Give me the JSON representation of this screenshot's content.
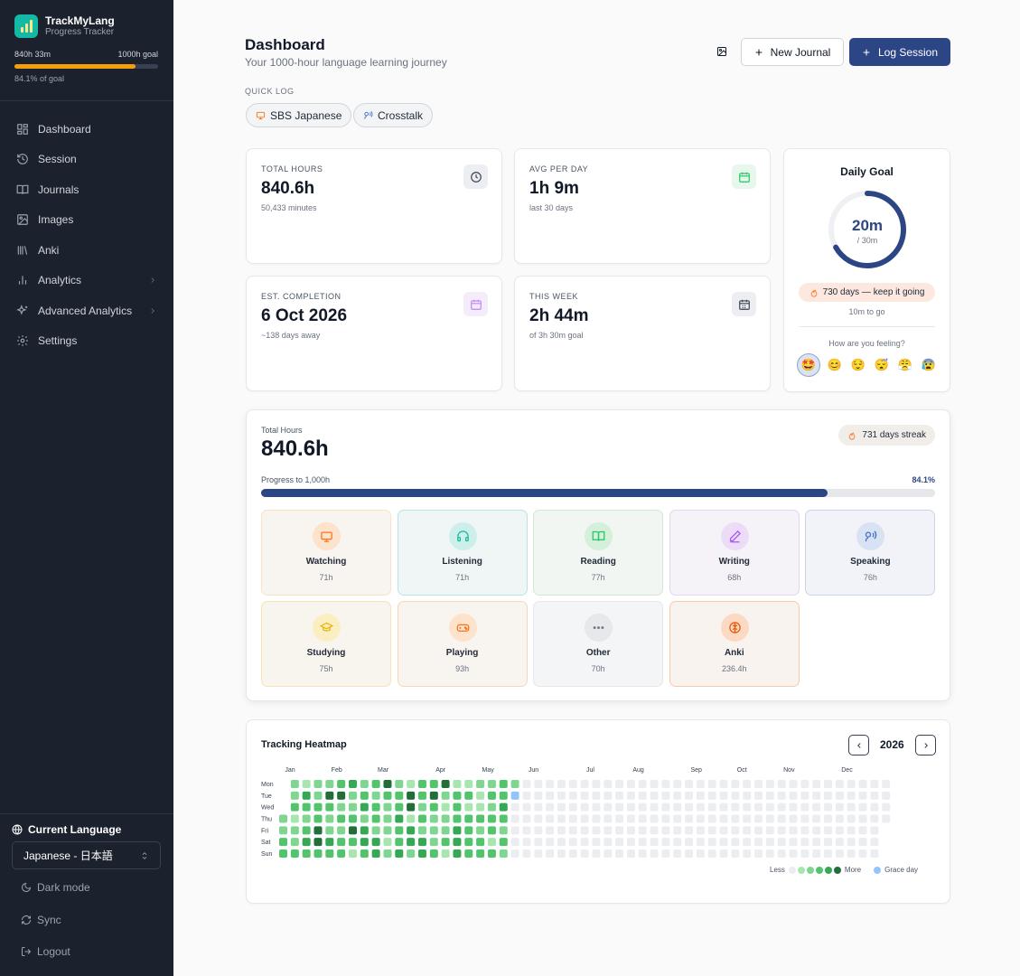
{
  "app": {
    "name": "TrackMyLang",
    "subtitle": "Progress Tracker"
  },
  "goal": {
    "current": "840h 33m",
    "target": "1000h goal",
    "percent_text": "84.1% of goal",
    "fraction": 0.841
  },
  "nav": [
    {
      "label": "Dashboard",
      "icon": "dashboard-icon"
    },
    {
      "label": "Session",
      "icon": "history-icon"
    },
    {
      "label": "Journals",
      "icon": "book-icon"
    },
    {
      "label": "Images",
      "icon": "image-icon"
    },
    {
      "label": "Anki",
      "icon": "library-icon"
    },
    {
      "label": "Analytics",
      "icon": "bar-chart-icon",
      "has_submenu": true
    },
    {
      "label": "Advanced Analytics",
      "icon": "sparkles-icon",
      "has_submenu": true
    },
    {
      "label": "Settings",
      "icon": "gear-icon"
    }
  ],
  "sidebar_bottom": {
    "current_language_label": "Current Language",
    "language_value": "Japanese - 日本語",
    "dark_mode": "Dark mode",
    "sync": "Sync",
    "logout": "Logout"
  },
  "header": {
    "title": "Dashboard",
    "subtitle": "Your 1000-hour language learning journey",
    "new_journal": "New Journal",
    "log_session": "Log Session"
  },
  "quick_log": {
    "label": "QUICK LOG",
    "chips": [
      {
        "label": "SBS Japanese",
        "icon": "tv-icon"
      },
      {
        "label": "Crosstalk",
        "icon": "speaking-icon"
      }
    ]
  },
  "stats": {
    "total_hours": {
      "label": "TOTAL HOURS",
      "value": "840.6h",
      "sub": "50,433 minutes",
      "icon": "clock-icon"
    },
    "avg_per_day": {
      "label": "AVG PER DAY",
      "value": "1h 9m",
      "sub": "last 30 days",
      "icon": "calendar-icon"
    },
    "est_completion": {
      "label": "EST. COMPLETION",
      "value": "6 Oct 2026",
      "sub": "~138 days away",
      "icon": "calendar-icon"
    },
    "this_week": {
      "label": "THIS WEEK",
      "value": "2h 44m",
      "sub": "of 3h 30m goal",
      "icon": "calendar-grid-icon"
    }
  },
  "daily_goal": {
    "title": "Daily Goal",
    "value": "20m",
    "target": "/ 30m",
    "fraction": 0.667,
    "streak": "730 days — keep it going",
    "to_go": "10m to go",
    "feeling_prompt": "How are you feeling?",
    "moods": [
      "🤩",
      "😊",
      "😌",
      "😴",
      "😤",
      "😰"
    ],
    "selected_mood": 0
  },
  "total_panel": {
    "label": "Total Hours",
    "value": "840.6h",
    "streak": "731 days streak",
    "progress_label": "Progress to 1,000h",
    "progress_pct": "84.1%",
    "fraction": 0.841,
    "categories": [
      {
        "name": "Watching",
        "value": "71h",
        "icon": "tv-icon",
        "color": "#f97316"
      },
      {
        "name": "Listening",
        "value": "71h",
        "icon": "headphones-icon",
        "color": "#14b8a6"
      },
      {
        "name": "Reading",
        "value": "77h",
        "icon": "book-open-icon",
        "color": "#22c55e"
      },
      {
        "name": "Writing",
        "value": "68h",
        "icon": "pen-icon",
        "color": "#a855f7"
      },
      {
        "name": "Speaking",
        "value": "76h",
        "icon": "speaking-icon",
        "color": "#3b6fc4"
      },
      {
        "name": "Studying",
        "value": "75h",
        "icon": "graduation-cap-icon",
        "color": "#eab308"
      },
      {
        "name": "Playing",
        "value": "93h",
        "icon": "gamepad-icon",
        "color": "#f97316"
      },
      {
        "name": "Other",
        "value": "70h",
        "icon": "more-horizontal-icon",
        "color": "#6b7280"
      },
      {
        "name": "Anki",
        "value": "236.4h",
        "icon": "brain-icon",
        "color": "#ea580c"
      }
    ]
  },
  "heatmap": {
    "title": "Tracking Heatmap",
    "year": "2026",
    "months": [
      "Jan",
      "Feb",
      "Mar",
      "Apr",
      "May",
      "Jun",
      "Jul",
      "Aug",
      "Sep",
      "Oct",
      "Nov",
      "Dec"
    ],
    "days": [
      "Mon",
      "Tue",
      "Wed",
      "Thu",
      "Fri",
      "Sat",
      "Sun"
    ],
    "legend_less": "Less",
    "legend_more": "More",
    "legend_grace": "Grace day",
    "colors": [
      "#ebedf0",
      "#a8e6b0",
      "#7ed690",
      "#52c46c",
      "#34a853",
      "#216e39"
    ],
    "grace_color": "#93c5fd"
  }
}
